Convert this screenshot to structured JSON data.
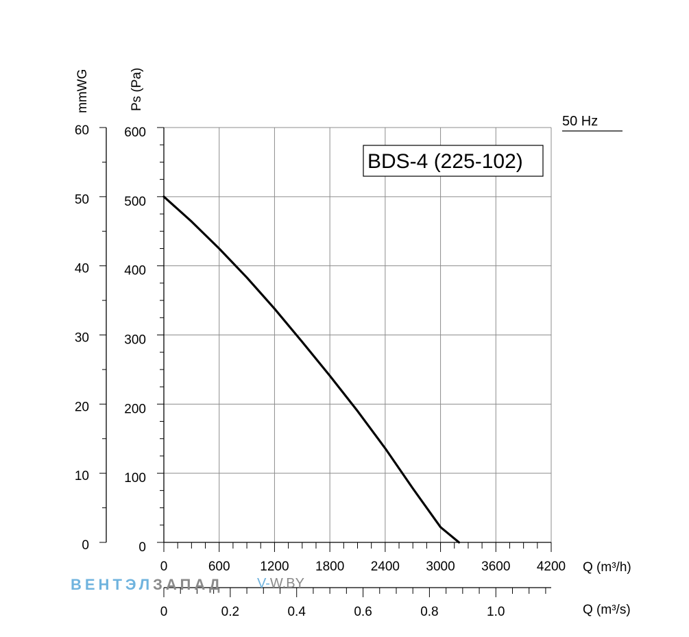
{
  "chart_data": {
    "type": "line",
    "model_label": "BDS-4 (225-102)",
    "frequency_label": "50 Hz",
    "x_axis": {
      "label": "Q (m³/h)",
      "range": [
        0,
        4200
      ],
      "ticks": [
        0,
        600,
        1200,
        1800,
        2400,
        3000,
        3600,
        4200
      ],
      "tick_labels": [
        "0",
        "600",
        "1200",
        "1800",
        "2400",
        "3000",
        "3600",
        "4200"
      ],
      "minor_step": 150
    },
    "x2_axis": {
      "label": "Q (m³/s)",
      "range": [
        0,
        1.1667
      ],
      "ticks": [
        0,
        0.2,
        0.4,
        0.6,
        0.8,
        1.0
      ],
      "tick_labels": [
        "0",
        "0.2",
        "0.4",
        "0.6",
        "0.8",
        "1.0"
      ],
      "minor_step": 0.05
    },
    "y_axis": {
      "label": "Ps (Pa)",
      "range": [
        0,
        600
      ],
      "ticks": [
        0,
        100,
        200,
        300,
        400,
        500,
        600
      ],
      "tick_labels": [
        "0",
        "100",
        "200",
        "300",
        "400",
        "500",
        "600"
      ],
      "minor_step": 25
    },
    "y2_axis": {
      "label": "mmWG",
      "range": [
        0,
        60
      ],
      "ticks": [
        0,
        10,
        20,
        30,
        40,
        50,
        60
      ],
      "tick_labels": [
        "0",
        "10",
        "20",
        "30",
        "40",
        "50",
        "60"
      ],
      "minor_step": 5
    },
    "grid": true,
    "series": [
      {
        "x": [
          0,
          300,
          600,
          900,
          1200,
          1500,
          1800,
          2100,
          2400,
          2700,
          3000,
          3200
        ],
        "y": [
          500,
          464,
          425,
          383,
          338,
          290,
          241,
          190,
          136,
          78,
          22,
          0
        ]
      }
    ]
  },
  "watermark": {
    "brand_part1": "ВЕНТЭЛ",
    "brand_part2": "ЗАПАД",
    "domain_part1": "V-",
    "domain_part2": "W.BY"
  },
  "colors": {
    "grid": "#8c8c8c",
    "axis": "#000000",
    "curve": "#000000",
    "watermark_blue": "#6fb3de",
    "watermark_gray": "#8a8a8a"
  }
}
